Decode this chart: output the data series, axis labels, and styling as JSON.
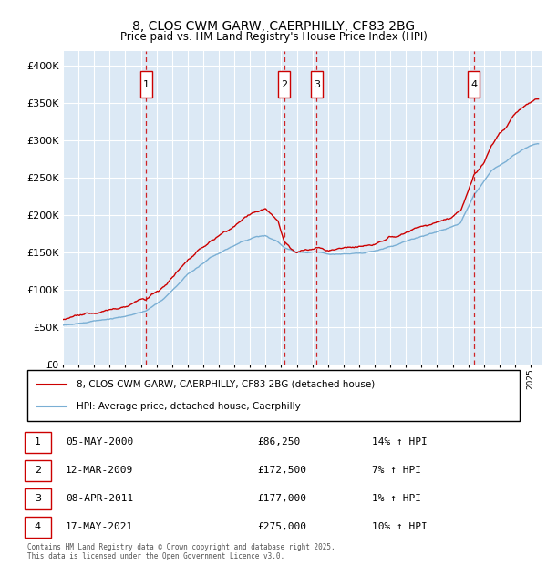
{
  "title1": "8, CLOS CWM GARW, CAERPHILLY, CF83 2BG",
  "title2": "Price paid vs. HM Land Registry's House Price Index (HPI)",
  "legend_label_red": "8, CLOS CWM GARW, CAERPHILLY, CF83 2BG (detached house)",
  "legend_label_blue": "HPI: Average price, detached house, Caerphilly",
  "footer1": "Contains HM Land Registry data © Crown copyright and database right 2025.",
  "footer2": "This data is licensed under the Open Government Licence v3.0.",
  "sale_markers": [
    {
      "num": 1,
      "date": "05-MAY-2000",
      "price": 86250,
      "pct": "14%",
      "x_year": 2000.35
    },
    {
      "num": 2,
      "date": "12-MAR-2009",
      "price": 172500,
      "pct": "7%",
      "x_year": 2009.19
    },
    {
      "num": 3,
      "date": "08-APR-2011",
      "price": 177000,
      "pct": "1%",
      "x_year": 2011.27
    },
    {
      "num": 4,
      "date": "17-MAY-2021",
      "price": 275000,
      "pct": "10%",
      "x_year": 2021.37
    }
  ],
  "ylim": [
    0,
    420000
  ],
  "xlim_start": 1995.0,
  "xlim_end": 2025.7,
  "background_color": "#dce9f5",
  "grid_color": "#ffffff",
  "red_color": "#cc0000",
  "blue_color": "#7aafd4",
  "marker_box_color": "#cc0000",
  "vline_color": "#cc0000"
}
